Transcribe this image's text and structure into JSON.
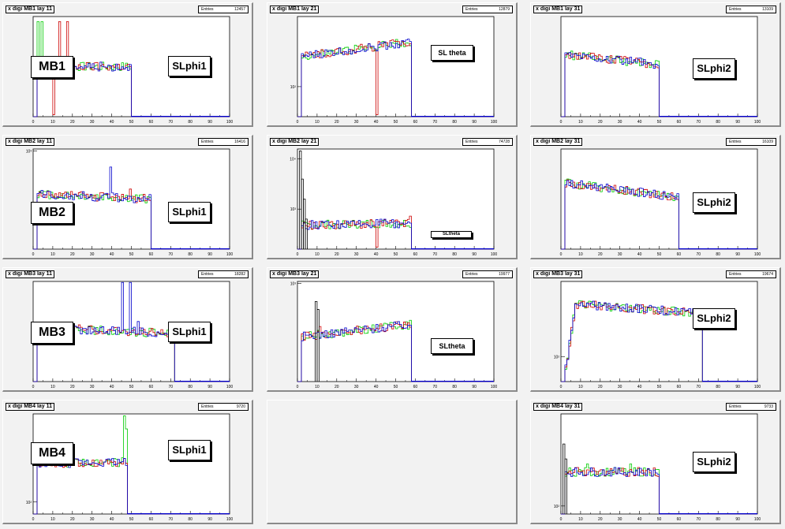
{
  "chart_data": [
    {
      "id": "p1",
      "type": "histogram",
      "title": "x digi MB1 lay 11",
      "stats_label": "Entries",
      "stats_value": "12457",
      "station_label": "MB1",
      "sl_label": "SLphi1",
      "xlim": [
        0,
        100
      ],
      "end": 50,
      "base": 0.5,
      "dip": 1,
      "dip_at": 10,
      "spikes": {
        "red": [
          [
            13,
            0.95
          ],
          [
            17,
            0.95
          ]
        ],
        "green": [
          [
            2,
            0.95
          ],
          [
            4,
            0.95
          ]
        ]
      },
      "yticks": [],
      "xticks": [
        0,
        10,
        20,
        30,
        40,
        50,
        60,
        70,
        80,
        90,
        100
      ]
    },
    {
      "id": "p2",
      "type": "histogram",
      "title": "x digi MB1 lay 21",
      "stats_label": "Entries",
      "stats_value": "12879",
      "sl_label": "SL theta",
      "xlim": [
        0,
        100
      ],
      "end": 58,
      "base": 0.6,
      "slope": 0.15,
      "dip": 1,
      "dip_at": 40,
      "spikes": {
        "red": [
          [
            10,
            0.65
          ]
        ]
      },
      "yticks": [
        {
          "v": 0.3,
          "t": "10²"
        }
      ],
      "xticks": [
        0,
        10,
        20,
        30,
        40,
        50,
        60,
        70,
        80,
        90,
        100
      ]
    },
    {
      "id": "p3",
      "type": "histogram",
      "title": "x digi MB1 lay 31",
      "stats_label": "Entries",
      "stats_value": "13109",
      "sl_label": "SLphi2",
      "xlim": [
        0,
        100
      ],
      "end": 50,
      "base": 0.62,
      "slope": -0.1,
      "yticks": [],
      "xticks": [
        0,
        10,
        20,
        30,
        40,
        50,
        60,
        70,
        80,
        90,
        100
      ]
    },
    {
      "id": "p4",
      "type": "histogram",
      "title": "x digi MB2 lay 11",
      "stats_label": "Entries",
      "stats_value": "16416",
      "station_label": "MB2",
      "sl_label": "SLphi1",
      "xlim": [
        0,
        100
      ],
      "end": 60,
      "base": 0.55,
      "slope": -0.05,
      "spikes": {
        "blue": [
          [
            39,
            0.82
          ]
        ],
        "red": [
          [
            49,
            0.6
          ]
        ]
      },
      "yticks": [
        {
          "v": 0.98,
          "t": "10³"
        }
      ],
      "xticks": [
        0,
        10,
        20,
        30,
        40,
        50,
        60,
        70,
        80,
        90,
        100
      ]
    },
    {
      "id": "p5",
      "type": "histogram",
      "title": "x digi MB2 lay 21",
      "stats_label": "Entries",
      "stats_value": "74728",
      "sl_label": "SLtheta",
      "xlim": [
        0,
        100
      ],
      "end": 58,
      "base": 0.24,
      "slope": 0.02,
      "dip": 1,
      "dip_at": 40,
      "spikes": {
        "black": [
          [
            1,
            0.98
          ],
          [
            2,
            0.7
          ],
          [
            3,
            0.5
          ],
          [
            4,
            0.3
          ]
        ],
        "red": [
          [
            57,
            0.33
          ]
        ]
      },
      "yticks": [
        {
          "v": 0.9,
          "t": "10⁴"
        },
        {
          "v": 0.4,
          "t": "10³"
        }
      ],
      "xticks": [
        0,
        10,
        20,
        30,
        40,
        50,
        60,
        70,
        80,
        90,
        100
      ]
    },
    {
      "id": "p6",
      "type": "histogram",
      "title": "x digi MB2 lay 31",
      "stats_label": "Entries",
      "stats_value": "16109",
      "sl_label": "SLphi2",
      "xlim": [
        0,
        100
      ],
      "end": 60,
      "base": 0.66,
      "slope": -0.14,
      "yticks": [],
      "xticks": [
        0,
        10,
        20,
        30,
        40,
        50,
        60,
        70,
        80,
        90,
        100
      ]
    },
    {
      "id": "p7",
      "type": "histogram",
      "title": "x digi MB3 lay 11",
      "stats_label": "Entries",
      "stats_value": "18282",
      "station_label": "MB3",
      "sl_label": "SLphi1",
      "xlim": [
        0,
        100
      ],
      "end": 72,
      "base": 0.54,
      "slope": -0.06,
      "spikes": {
        "blue": [
          [
            45,
            0.99
          ],
          [
            49,
            0.99
          ],
          [
            53,
            0.6
          ],
          [
            72,
            0.5
          ]
        ]
      },
      "yticks": [],
      "xticks": [
        0,
        10,
        20,
        30,
        40,
        50,
        60,
        70,
        80,
        90,
        100
      ]
    },
    {
      "id": "p8",
      "type": "histogram",
      "title": "x digi MB3 lay 21",
      "stats_label": "Entries",
      "stats_value": "19977",
      "sl_label": "SLtheta",
      "xlim": [
        0,
        100
      ],
      "end": 58,
      "base": 0.45,
      "slope": 0.12,
      "spikes": {
        "black": [
          [
            9,
            0.8
          ],
          [
            10,
            0.72
          ]
        ],
        "red": [
          [
            11,
            0.55
          ]
        ]
      },
      "yticks": [
        {
          "v": 0.98,
          "t": "10³"
        }
      ],
      "xticks": [
        0,
        10,
        20,
        30,
        40,
        50,
        60,
        70,
        80,
        90,
        100
      ]
    },
    {
      "id": "p9",
      "type": "histogram",
      "title": "x digi MB3 lay 31",
      "stats_label": "Entries",
      "stats_value": "19674",
      "sl_label": "SLphi2",
      "xlim": [
        0,
        100
      ],
      "end": 72,
      "base": 0.78,
      "slope": -0.1,
      "rise": 6,
      "yticks": [
        {
          "v": 0.25,
          "t": "10²"
        }
      ],
      "xticks": [
        0,
        10,
        20,
        30,
        40,
        50,
        60,
        70,
        80,
        90,
        100
      ]
    },
    {
      "id": "p10",
      "type": "histogram",
      "title": "x digi MB4 lay 11",
      "stats_label": "Entries",
      "stats_value": "9720",
      "station_label": "MB4",
      "sl_label": "SLphi1",
      "xlim": [
        0,
        100
      ],
      "end": 48,
      "base": 0.5,
      "slope": 0.02,
      "spikes": {
        "green": [
          [
            46,
            0.98
          ],
          [
            47,
            0.85
          ]
        ],
        "blue": [
          [
            48,
            0.6
          ]
        ]
      },
      "yticks": [
        {
          "v": 0.12,
          "t": "10²"
        }
      ],
      "xticks": [
        0,
        10,
        20,
        30,
        40,
        50,
        60,
        70,
        80,
        90,
        100
      ]
    },
    {
      "id": "p11",
      "type": "empty"
    },
    {
      "id": "p12",
      "type": "histogram",
      "title": "x digi MB4 lay 31",
      "stats_label": "Entries",
      "stats_value": "9733",
      "sl_label": "SLphi2",
      "xlim": [
        0,
        100
      ],
      "end": 50,
      "base": 0.42,
      "slope": 0,
      "spikes": {
        "black": [
          [
            1,
            0.7
          ],
          [
            2,
            0.55
          ]
        ],
        "green": [
          [
            13,
            0.5
          ],
          [
            35,
            0.5
          ]
        ]
      },
      "yticks": [
        {
          "v": 0.08,
          "t": "10²"
        }
      ],
      "xticks": [
        0,
        10,
        20,
        30,
        40,
        50,
        60,
        70,
        80,
        90,
        100
      ]
    }
  ],
  "colors": {
    "blue": "#0000cc",
    "red": "#cc0000",
    "green": "#00cc00",
    "black": "#000000"
  }
}
